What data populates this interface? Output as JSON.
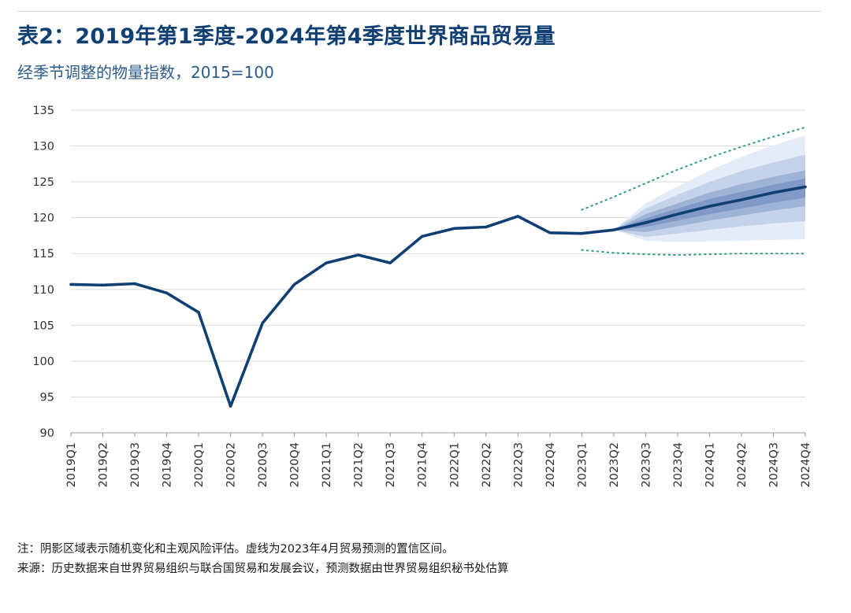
{
  "header": {
    "title": "表2：2019年第1季度-2024年第4季度世界商品贸易量",
    "subtitle": "经季节调整的物量指数，2015=100"
  },
  "notes": {
    "note": "注：阴影区域表示随机变化和主观风险评估。虚线为2023年4月贸易预测的置信区间。",
    "source": "来源：历史数据来自世界贸易组织与联合国贸易和发展会议，预测数据由世界贸易组织秘书处估算"
  },
  "colors": {
    "line": "#0f3f73",
    "band_outer": "#e4ecf7",
    "band_2": "#c5d3ea",
    "band_3": "#9fb3d6",
    "band_inner": "#8099c6",
    "dotted": "#2e9e6e",
    "grid": "#d9d9d9"
  },
  "chart_data": {
    "type": "line",
    "title": "表2：2019年第1季度-2024年第4季度世界商品贸易量",
    "ylabel": "经季节调整的物量指数，2015=100",
    "xlabel": "",
    "ylim": [
      90,
      135
    ],
    "yticks": [
      90,
      95,
      100,
      105,
      110,
      115,
      120,
      125,
      130,
      135
    ],
    "grid": true,
    "categories": [
      "2019Q1",
      "2019Q2",
      "2019Q3",
      "2019Q4",
      "2020Q1",
      "2020Q2",
      "2020Q3",
      "2020Q4",
      "2021Q1",
      "2021Q2",
      "2021Q3",
      "2021Q4",
      "2022Q1",
      "2022Q2",
      "2022Q3",
      "2022Q4",
      "2023Q1",
      "2023Q2",
      "2023Q3",
      "2023Q4",
      "2024Q1",
      "2024Q2",
      "2024Q3",
      "2024Q4"
    ],
    "series": [
      {
        "name": "世界商品贸易量",
        "values": [
          110.7,
          110.6,
          110.8,
          109.5,
          106.8,
          93.7,
          105.3,
          110.7,
          113.7,
          114.8,
          113.7,
          117.4,
          118.5,
          118.7,
          120.2,
          117.9,
          117.8,
          118.3,
          119.3,
          120.5,
          121.6,
          122.5,
          123.5,
          124.3
        ]
      }
    ],
    "forecast_start": "2023Q2",
    "forecast_bands": [
      {
        "name": "outer",
        "x": [
          "2023Q2",
          "2023Q3",
          "2023Q4",
          "2024Q1",
          "2024Q2",
          "2024Q3",
          "2024Q4"
        ],
        "lower": [
          118.3,
          116.8,
          116.6,
          116.7,
          116.8,
          116.9,
          117.0
        ],
        "upper": [
          118.3,
          122.0,
          124.4,
          126.6,
          128.5,
          130.1,
          131.5
        ]
      },
      {
        "name": "band2",
        "x": [
          "2023Q2",
          "2023Q3",
          "2023Q4",
          "2024Q1",
          "2024Q2",
          "2024Q3",
          "2024Q4"
        ],
        "lower": [
          118.3,
          117.3,
          117.8,
          118.3,
          118.8,
          119.2,
          119.5
        ],
        "upper": [
          118.3,
          121.3,
          123.2,
          125.0,
          126.5,
          127.7,
          128.8
        ]
      },
      {
        "name": "band3",
        "x": [
          "2023Q2",
          "2023Q3",
          "2023Q4",
          "2024Q1",
          "2024Q2",
          "2024Q3",
          "2024Q4"
        ],
        "lower": [
          118.3,
          118.0,
          118.8,
          119.6,
          120.3,
          121.0,
          121.6
        ],
        "upper": [
          118.3,
          120.5,
          122.0,
          123.5,
          124.7,
          125.7,
          126.6
        ]
      },
      {
        "name": "inner",
        "x": [
          "2023Q2",
          "2023Q3",
          "2023Q4",
          "2024Q1",
          "2024Q2",
          "2024Q3",
          "2024Q4"
        ],
        "lower": [
          118.3,
          118.7,
          119.6,
          120.5,
          121.3,
          122.1,
          122.8
        ],
        "upper": [
          118.3,
          119.9,
          121.3,
          122.6,
          123.6,
          124.6,
          125.5
        ]
      }
    ],
    "confidence_interval_april_2023": {
      "x": [
        "2023Q1",
        "2023Q2",
        "2023Q3",
        "2023Q4",
        "2024Q1",
        "2024Q2",
        "2024Q3",
        "2024Q4"
      ],
      "lower": [
        115.5,
        115.1,
        114.9,
        114.8,
        114.9,
        115.0,
        115.0,
        115.0
      ],
      "upper": [
        121.1,
        122.9,
        124.8,
        126.7,
        128.4,
        129.9,
        131.3,
        132.6
      ]
    }
  }
}
